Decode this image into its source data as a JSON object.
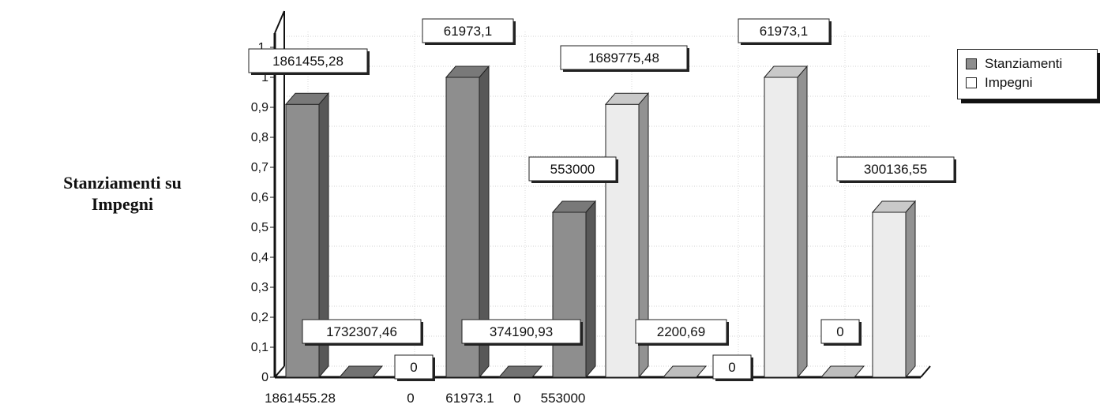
{
  "chart_data": {
    "type": "bar",
    "ylabel": "Stanziamenti su Impegni",
    "ylim": [
      0,
      1.1
    ],
    "yticks": [
      "0",
      "0,1",
      "0,2",
      "0,3",
      "0,4",
      "0,5",
      "0,6",
      "0,7",
      "0,8",
      "0,9",
      "1",
      "1,"
    ],
    "xtick_labels": [
      "1861455.28",
      "0",
      "61973.1",
      "0",
      "553000"
    ],
    "series": [
      {
        "name": "Stanziamenti",
        "color": "#8e8e8e",
        "values": [
          0.91,
          0,
          1.0,
          0,
          0.55,
          0,
          0,
          0
        ],
        "labels": [
          "1861455,28",
          "1732307,46",
          "61973,1",
          "374190,93",
          "553000",
          "2200,69",
          "0",
          ""
        ]
      },
      {
        "name": "Impegni",
        "color": "#ececec",
        "values": [
          0,
          0,
          0,
          0.91,
          0,
          1.0,
          0.55,
          0
        ],
        "labels": [
          "0",
          "",
          "",
          "1689775,48",
          "0",
          "61973,1",
          "300136,55",
          ""
        ]
      }
    ],
    "grid": true,
    "legend_position": "top-right"
  }
}
